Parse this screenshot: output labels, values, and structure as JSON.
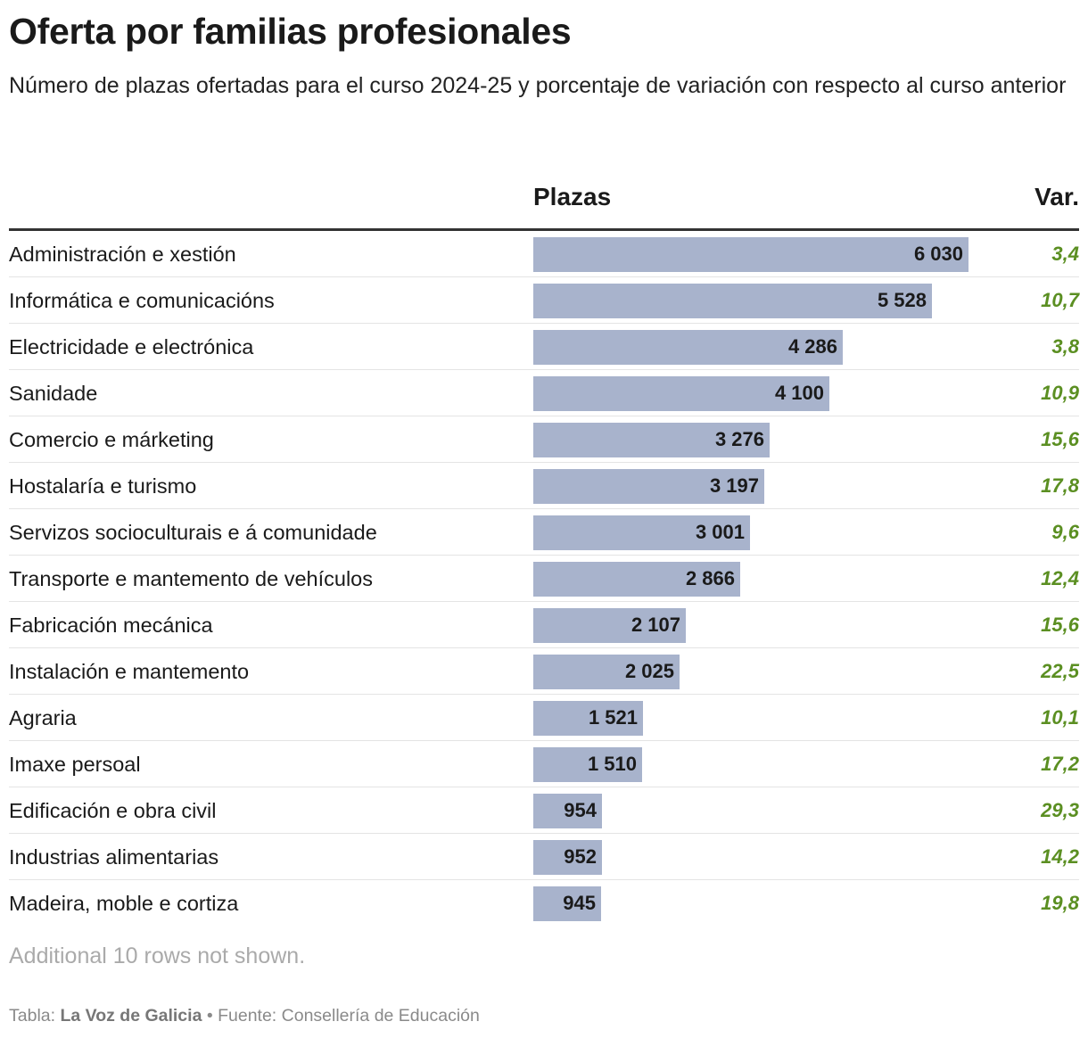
{
  "title": "Oferta por familias profesionales",
  "subtitle": "Número de plazas ofertadas para el curso 2024-25 y porcentaje de variación con respecto al curso anterior",
  "columns": {
    "plazas": "Plazas",
    "var": "Var."
  },
  "note": "Additional 10 rows not shown.",
  "footer": {
    "prefix": "Tabla:",
    "publisher": "La Voz de Galicia",
    "separator": "•",
    "source": "Fuente: Consellería de Educación"
  },
  "colors": {
    "bar": "#a8b3cc",
    "var_positive": "#5b8f22",
    "rule": "#333333"
  },
  "chart_data": {
    "type": "table",
    "title": "Oferta por familias profesionales",
    "columns": [
      "",
      "Plazas",
      "Var."
    ],
    "bar_max": 6030,
    "rows": [
      {
        "label": "Administración e xestión",
        "plazas": 6030,
        "plazas_text": "6 030",
        "var": 3.4,
        "var_text": "3,4"
      },
      {
        "label": "Informática e comunicacións",
        "plazas": 5528,
        "plazas_text": "5 528",
        "var": 10.7,
        "var_text": "10,7"
      },
      {
        "label": "Electricidade e electrónica",
        "plazas": 4286,
        "plazas_text": "4 286",
        "var": 3.8,
        "var_text": "3,8"
      },
      {
        "label": "Sanidade",
        "plazas": 4100,
        "plazas_text": "4 100",
        "var": 10.9,
        "var_text": "10,9"
      },
      {
        "label": "Comercio e márketing",
        "plazas": 3276,
        "plazas_text": "3 276",
        "var": 15.6,
        "var_text": "15,6"
      },
      {
        "label": "Hostalaría e turismo",
        "plazas": 3197,
        "plazas_text": "3 197",
        "var": 17.8,
        "var_text": "17,8"
      },
      {
        "label": "Servizos socioculturais e á comunidade",
        "plazas": 3001,
        "plazas_text": "3 001",
        "var": 9.6,
        "var_text": "9,6"
      },
      {
        "label": "Transporte e mantemento de vehículos",
        "plazas": 2866,
        "plazas_text": "2 866",
        "var": 12.4,
        "var_text": "12,4"
      },
      {
        "label": "Fabricación mecánica",
        "plazas": 2107,
        "plazas_text": "2 107",
        "var": 15.6,
        "var_text": "15,6"
      },
      {
        "label": "Instalación e mantemento",
        "plazas": 2025,
        "plazas_text": "2 025",
        "var": 22.5,
        "var_text": "22,5"
      },
      {
        "label": "Agraria",
        "plazas": 1521,
        "plazas_text": "1 521",
        "var": 10.1,
        "var_text": "10,1"
      },
      {
        "label": "Imaxe persoal",
        "plazas": 1510,
        "plazas_text": "1 510",
        "var": 17.2,
        "var_text": "17,2"
      },
      {
        "label": "Edificación e obra civil",
        "plazas": 954,
        "plazas_text": "954",
        "var": 29.3,
        "var_text": "29,3"
      },
      {
        "label": "Industrias alimentarias",
        "plazas": 952,
        "plazas_text": "952",
        "var": 14.2,
        "var_text": "14,2"
      },
      {
        "label": "Madeira, moble e cortiza",
        "plazas": 945,
        "plazas_text": "945",
        "var": 19.8,
        "var_text": "19,8"
      }
    ]
  }
}
